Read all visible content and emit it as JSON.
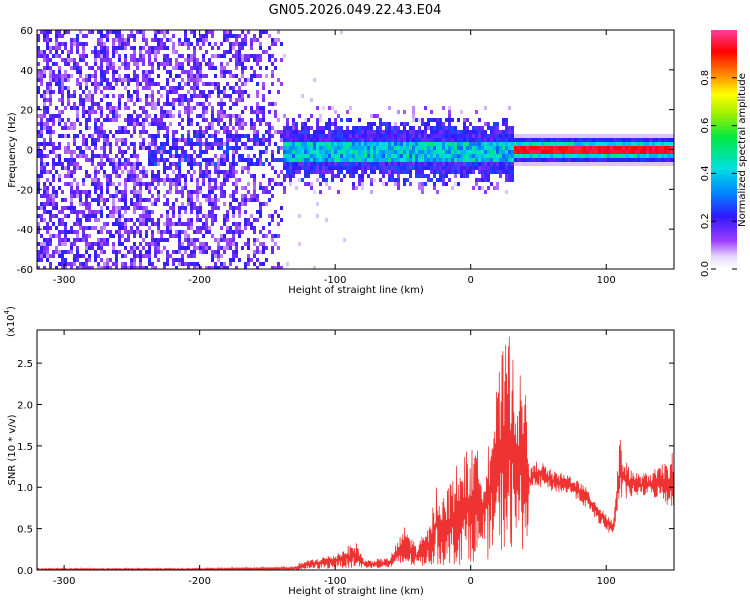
{
  "title": "GN05.2026.049.22.43.E04",
  "chart_data": [
    {
      "type": "heatmap",
      "xlabel": "Height of straight line (km)",
      "ylabel": "Frequency (Hz)",
      "xlim": [
        -320,
        150
      ],
      "ylim": [
        -60,
        60
      ],
      "xticks": [
        -300,
        -200,
        -100,
        0,
        100
      ],
      "yticks": [
        60,
        40,
        20,
        0,
        -20,
        -40,
        -60
      ],
      "colorbar": {
        "label": "Normalized spectral amplitude",
        "range": [
          0.0,
          1.0
        ],
        "ticks": [
          "0.0",
          "0.2",
          "0.4",
          "0.6",
          "0.8"
        ]
      },
      "features": [
        {
          "x_range": [
            -320,
            -140
          ],
          "freq_range": [
            -60,
            60
          ],
          "amplitude": "low, scattered (purple)"
        },
        {
          "x_range": [
            -140,
            30
          ],
          "freq_range": [
            -20,
            20
          ],
          "amplitude": "medium, centered near 0 Hz (blue-cyan)"
        },
        {
          "x_range": [
            30,
            150
          ],
          "freq_range": [
            -3,
            3
          ],
          "amplitude": "high, centered at 0 Hz (red)"
        }
      ]
    },
    {
      "type": "line",
      "xlabel": "Height of straight line (km)",
      "ylabel": "SNR (10 * v/v)",
      "multiplier": "(x10",
      "multiplier_exp": "4",
      "xlim": [
        -320,
        150
      ],
      "ylim": [
        0,
        2.9
      ],
      "xticks": [
        -300,
        -200,
        -100,
        0,
        100
      ],
      "yticks": [
        "0.0",
        "0.5",
        "1.0",
        "1.5",
        "2.0",
        "2.5"
      ],
      "color": "#ee3333",
      "envelope": [
        {
          "x": -320,
          "lo": 0.0,
          "hi": 0.02
        },
        {
          "x": -200,
          "lo": 0.0,
          "hi": 0.02
        },
        {
          "x": -130,
          "lo": 0.0,
          "hi": 0.04
        },
        {
          "x": -125,
          "lo": 0.0,
          "hi": 0.1
        },
        {
          "x": -100,
          "lo": 0.02,
          "hi": 0.2
        },
        {
          "x": -85,
          "lo": 0.02,
          "hi": 0.35
        },
        {
          "x": -78,
          "lo": 0.02,
          "hi": 0.12
        },
        {
          "x": -60,
          "lo": 0.02,
          "hi": 0.15
        },
        {
          "x": -48,
          "lo": 0.03,
          "hi": 0.55
        },
        {
          "x": -40,
          "lo": 0.04,
          "hi": 0.3
        },
        {
          "x": -30,
          "lo": 0.05,
          "hi": 0.55
        },
        {
          "x": -25,
          "lo": 0.05,
          "hi": 1.1
        },
        {
          "x": -20,
          "lo": 0.05,
          "hi": 0.9
        },
        {
          "x": -10,
          "lo": 0.05,
          "hi": 1.3
        },
        {
          "x": 0,
          "lo": 0.1,
          "hi": 1.5
        },
        {
          "x": 10,
          "lo": 0.1,
          "hi": 1.4
        },
        {
          "x": 20,
          "lo": 0.2,
          "hi": 2.3
        },
        {
          "x": 25,
          "lo": 0.2,
          "hi": 2.8
        },
        {
          "x": 30,
          "lo": 0.2,
          "hi": 2.9
        },
        {
          "x": 35,
          "lo": 0.2,
          "hi": 2.4
        },
        {
          "x": 42,
          "lo": 0.3,
          "hi": 2.2
        },
        {
          "x": 43,
          "lo": 0.95,
          "hi": 1.2
        },
        {
          "x": 50,
          "lo": 1.0,
          "hi": 1.35
        },
        {
          "x": 60,
          "lo": 0.95,
          "hi": 1.2
        },
        {
          "x": 75,
          "lo": 0.9,
          "hi": 1.15
        },
        {
          "x": 85,
          "lo": 0.75,
          "hi": 1.0
        },
        {
          "x": 95,
          "lo": 0.55,
          "hi": 0.8
        },
        {
          "x": 105,
          "lo": 0.4,
          "hi": 0.6
        },
        {
          "x": 110,
          "lo": 0.8,
          "hi": 1.6
        },
        {
          "x": 115,
          "lo": 0.85,
          "hi": 1.3
        },
        {
          "x": 125,
          "lo": 0.9,
          "hi": 1.15
        },
        {
          "x": 140,
          "lo": 0.85,
          "hi": 1.25
        },
        {
          "x": 150,
          "lo": 0.7,
          "hi": 1.45
        }
      ]
    }
  ]
}
